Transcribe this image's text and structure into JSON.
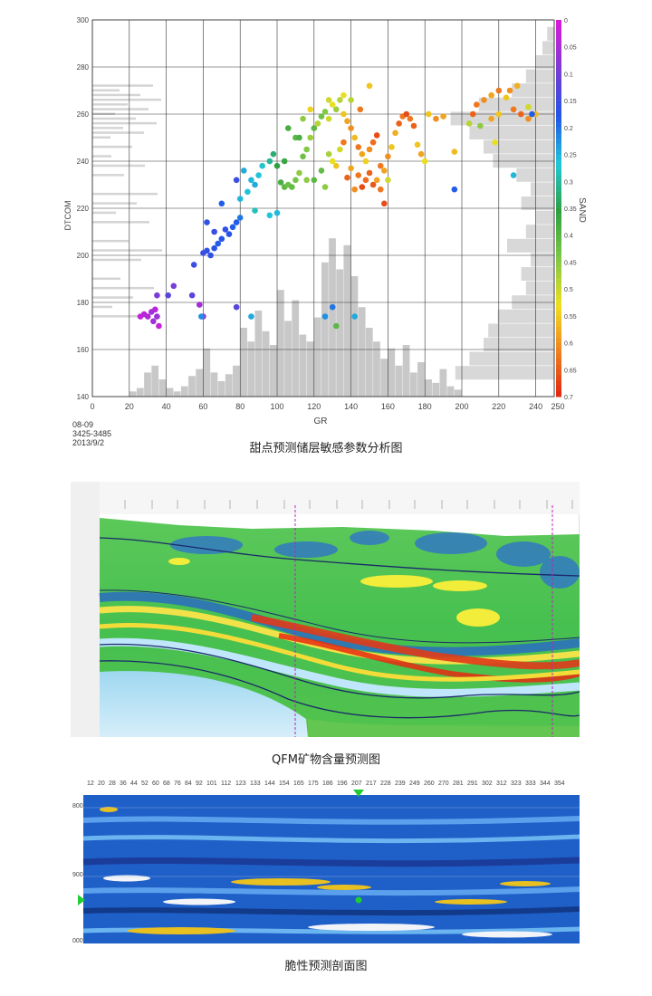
{
  "figure1": {
    "caption": "甜点预测储层敏感参数分析图",
    "meta_lines": [
      "08-09",
      "3425-3485",
      "2013/9/2"
    ],
    "colorbar_label": "SAND"
  },
  "figure2": {
    "caption": "QFM矿物含量预测图"
  },
  "figure3": {
    "caption": "脆性预测剖面图"
  },
  "chart_data": [
    {
      "type": "scatter",
      "title": "",
      "xlabel": "GR",
      "ylabel": "DTCOM",
      "xlim": [
        0,
        250
      ],
      "ylim": [
        140,
        300
      ],
      "x_ticks": [
        0,
        20,
        40,
        60,
        80,
        100,
        120,
        140,
        160,
        180,
        200,
        220,
        240,
        250
      ],
      "y_ticks": [
        140,
        160,
        180,
        200,
        220,
        240,
        260,
        280,
        300
      ],
      "grid": true,
      "colorbar": {
        "label": "SAND",
        "min": 0,
        "max": 0.7,
        "ticks": [
          0,
          0.05,
          0.1,
          0.15,
          0.2,
          0.25,
          0.3,
          0.35,
          0.4,
          0.45,
          0.5,
          0.55,
          0.6,
          0.65,
          0.7
        ],
        "colors": [
          "#d81bd8",
          "#7a3cd4",
          "#2255e8",
          "#21c8d8",
          "#2ea040",
          "#7ec848",
          "#f0e020",
          "#f08020",
          "#e02010"
        ]
      },
      "gr_histogram": [
        {
          "x": 22,
          "c": 3
        },
        {
          "x": 26,
          "c": 5
        },
        {
          "x": 30,
          "c": 14
        },
        {
          "x": 34,
          "c": 18
        },
        {
          "x": 38,
          "c": 10
        },
        {
          "x": 42,
          "c": 5
        },
        {
          "x": 46,
          "c": 3
        },
        {
          "x": 50,
          "c": 6
        },
        {
          "x": 54,
          "c": 12
        },
        {
          "x": 58,
          "c": 16
        },
        {
          "x": 62,
          "c": 28
        },
        {
          "x": 66,
          "c": 14
        },
        {
          "x": 70,
          "c": 9
        },
        {
          "x": 74,
          "c": 13
        },
        {
          "x": 78,
          "c": 18
        },
        {
          "x": 82,
          "c": 40
        },
        {
          "x": 86,
          "c": 32
        },
        {
          "x": 90,
          "c": 50
        },
        {
          "x": 94,
          "c": 38
        },
        {
          "x": 98,
          "c": 30
        },
        {
          "x": 102,
          "c": 62
        },
        {
          "x": 106,
          "c": 44
        },
        {
          "x": 110,
          "c": 56
        },
        {
          "x": 114,
          "c": 36
        },
        {
          "x": 118,
          "c": 32
        },
        {
          "x": 122,
          "c": 46
        },
        {
          "x": 126,
          "c": 78
        },
        {
          "x": 130,
          "c": 92
        },
        {
          "x": 134,
          "c": 74
        },
        {
          "x": 138,
          "c": 88
        },
        {
          "x": 142,
          "c": 70
        },
        {
          "x": 146,
          "c": 52
        },
        {
          "x": 150,
          "c": 40
        },
        {
          "x": 154,
          "c": 32
        },
        {
          "x": 158,
          "c": 22
        },
        {
          "x": 162,
          "c": 28
        },
        {
          "x": 166,
          "c": 18
        },
        {
          "x": 170,
          "c": 30
        },
        {
          "x": 174,
          "c": 14
        },
        {
          "x": 178,
          "c": 20
        },
        {
          "x": 182,
          "c": 10
        },
        {
          "x": 186,
          "c": 8
        },
        {
          "x": 190,
          "c": 16
        },
        {
          "x": 194,
          "c": 6
        },
        {
          "x": 198,
          "c": 4
        }
      ],
      "dt_histogram": [
        {
          "y": 150,
          "c": 42
        },
        {
          "y": 156,
          "c": 36
        },
        {
          "y": 162,
          "c": 30
        },
        {
          "y": 168,
          "c": 28
        },
        {
          "y": 174,
          "c": 24
        },
        {
          "y": 180,
          "c": 18
        },
        {
          "y": 186,
          "c": 12
        },
        {
          "y": 192,
          "c": 14
        },
        {
          "y": 198,
          "c": 10
        },
        {
          "y": 204,
          "c": 20
        },
        {
          "y": 210,
          "c": 12
        },
        {
          "y": 216,
          "c": 8
        },
        {
          "y": 222,
          "c": 14
        },
        {
          "y": 228,
          "c": 10
        },
        {
          "y": 234,
          "c": 16
        },
        {
          "y": 240,
          "c": 26
        },
        {
          "y": 246,
          "c": 30
        },
        {
          "y": 252,
          "c": 36
        },
        {
          "y": 258,
          "c": 44
        },
        {
          "y": 264,
          "c": 32
        },
        {
          "y": 270,
          "c": 18
        },
        {
          "y": 276,
          "c": 12
        },
        {
          "y": 282,
          "c": 8
        },
        {
          "y": 288,
          "c": 5
        },
        {
          "y": 294,
          "c": 3
        }
      ],
      "points": [
        {
          "x": 26,
          "y": 174,
          "s": 0.02
        },
        {
          "x": 28,
          "y": 175,
          "s": 0.03
        },
        {
          "x": 30,
          "y": 174,
          "s": 0.04
        },
        {
          "x": 32,
          "y": 176,
          "s": 0.05
        },
        {
          "x": 34,
          "y": 177,
          "s": 0.03
        },
        {
          "x": 35,
          "y": 174,
          "s": 0.06
        },
        {
          "x": 36,
          "y": 170,
          "s": 0.02
        },
        {
          "x": 33,
          "y": 172,
          "s": 0.05
        },
        {
          "x": 35,
          "y": 183,
          "s": 0.09
        },
        {
          "x": 44,
          "y": 187,
          "s": 0.09
        },
        {
          "x": 41,
          "y": 183,
          "s": 0.12
        },
        {
          "x": 54,
          "y": 183,
          "s": 0.12
        },
        {
          "x": 58,
          "y": 179,
          "s": 0.05
        },
        {
          "x": 60,
          "y": 174,
          "s": 0.06
        },
        {
          "x": 55,
          "y": 196,
          "s": 0.15
        },
        {
          "x": 60,
          "y": 201,
          "s": 0.15
        },
        {
          "x": 62,
          "y": 202,
          "s": 0.16
        },
        {
          "x": 64,
          "y": 200,
          "s": 0.16
        },
        {
          "x": 66,
          "y": 203,
          "s": 0.17
        },
        {
          "x": 68,
          "y": 205,
          "s": 0.18
        },
        {
          "x": 70,
          "y": 207,
          "s": 0.17
        },
        {
          "x": 72,
          "y": 211,
          "s": 0.16
        },
        {
          "x": 74,
          "y": 209,
          "s": 0.17
        },
        {
          "x": 76,
          "y": 212,
          "s": 0.18
        },
        {
          "x": 78,
          "y": 214,
          "s": 0.18
        },
        {
          "x": 80,
          "y": 216,
          "s": 0.2
        },
        {
          "x": 62,
          "y": 214,
          "s": 0.16
        },
        {
          "x": 66,
          "y": 210,
          "s": 0.15
        },
        {
          "x": 59,
          "y": 174,
          "s": 0.22
        },
        {
          "x": 80,
          "y": 224,
          "s": 0.25
        },
        {
          "x": 84,
          "y": 227,
          "s": 0.26
        },
        {
          "x": 88,
          "y": 230,
          "s": 0.24
        },
        {
          "x": 90,
          "y": 234,
          "s": 0.26
        },
        {
          "x": 92,
          "y": 238,
          "s": 0.27
        },
        {
          "x": 86,
          "y": 232,
          "s": 0.25
        },
        {
          "x": 82,
          "y": 236,
          "s": 0.24
        },
        {
          "x": 96,
          "y": 240,
          "s": 0.3
        },
        {
          "x": 98,
          "y": 243,
          "s": 0.32
        },
        {
          "x": 100,
          "y": 238,
          "s": 0.35
        },
        {
          "x": 102,
          "y": 231,
          "s": 0.38
        },
        {
          "x": 104,
          "y": 229,
          "s": 0.4
        },
        {
          "x": 106,
          "y": 230,
          "s": 0.42
        },
        {
          "x": 108,
          "y": 229,
          "s": 0.41
        },
        {
          "x": 110,
          "y": 232,
          "s": 0.43
        },
        {
          "x": 112,
          "y": 235,
          "s": 0.45
        },
        {
          "x": 114,
          "y": 242,
          "s": 0.42
        },
        {
          "x": 116,
          "y": 245,
          "s": 0.44
        },
        {
          "x": 118,
          "y": 250,
          "s": 0.46
        },
        {
          "x": 120,
          "y": 254,
          "s": 0.4
        },
        {
          "x": 122,
          "y": 256,
          "s": 0.48
        },
        {
          "x": 124,
          "y": 259,
          "s": 0.42
        },
        {
          "x": 126,
          "y": 261,
          "s": 0.44
        },
        {
          "x": 128,
          "y": 258,
          "s": 0.5
        },
        {
          "x": 130,
          "y": 264,
          "s": 0.52
        },
        {
          "x": 132,
          "y": 262,
          "s": 0.46
        },
        {
          "x": 134,
          "y": 266,
          "s": 0.48
        },
        {
          "x": 136,
          "y": 260,
          "s": 0.55
        },
        {
          "x": 138,
          "y": 257,
          "s": 0.58
        },
        {
          "x": 140,
          "y": 254,
          "s": 0.6
        },
        {
          "x": 142,
          "y": 250,
          "s": 0.56
        },
        {
          "x": 144,
          "y": 246,
          "s": 0.62
        },
        {
          "x": 146,
          "y": 243,
          "s": 0.58
        },
        {
          "x": 148,
          "y": 240,
          "s": 0.54
        },
        {
          "x": 150,
          "y": 245,
          "s": 0.6
        },
        {
          "x": 152,
          "y": 248,
          "s": 0.63
        },
        {
          "x": 154,
          "y": 251,
          "s": 0.66
        },
        {
          "x": 156,
          "y": 238,
          "s": 0.62
        },
        {
          "x": 158,
          "y": 236,
          "s": 0.58
        },
        {
          "x": 160,
          "y": 242,
          "s": 0.6
        },
        {
          "x": 162,
          "y": 246,
          "s": 0.55
        },
        {
          "x": 164,
          "y": 252,
          "s": 0.57
        },
        {
          "x": 166,
          "y": 256,
          "s": 0.64
        },
        {
          "x": 168,
          "y": 259,
          "s": 0.62
        },
        {
          "x": 170,
          "y": 260,
          "s": 0.66
        },
        {
          "x": 172,
          "y": 258,
          "s": 0.62
        },
        {
          "x": 174,
          "y": 255,
          "s": 0.64
        },
        {
          "x": 176,
          "y": 247,
          "s": 0.55
        },
        {
          "x": 178,
          "y": 243,
          "s": 0.58
        },
        {
          "x": 180,
          "y": 240,
          "s": 0.52
        },
        {
          "x": 182,
          "y": 260,
          "s": 0.55
        },
        {
          "x": 186,
          "y": 258,
          "s": 0.6
        },
        {
          "x": 190,
          "y": 259,
          "s": 0.58
        },
        {
          "x": 196,
          "y": 244,
          "s": 0.56
        },
        {
          "x": 120,
          "y": 232,
          "s": 0.4
        },
        {
          "x": 124,
          "y": 236,
          "s": 0.41
        },
        {
          "x": 126,
          "y": 229,
          "s": 0.45
        },
        {
          "x": 128,
          "y": 243,
          "s": 0.47
        },
        {
          "x": 130,
          "y": 240,
          "s": 0.52
        },
        {
          "x": 132,
          "y": 238,
          "s": 0.55
        },
        {
          "x": 134,
          "y": 245,
          "s": 0.5
        },
        {
          "x": 136,
          "y": 248,
          "s": 0.62
        },
        {
          "x": 138,
          "y": 233,
          "s": 0.64
        },
        {
          "x": 140,
          "y": 237,
          "s": 0.58
        },
        {
          "x": 142,
          "y": 228,
          "s": 0.6
        },
        {
          "x": 144,
          "y": 234,
          "s": 0.62
        },
        {
          "x": 146,
          "y": 229,
          "s": 0.66
        },
        {
          "x": 148,
          "y": 232,
          "s": 0.63
        },
        {
          "x": 150,
          "y": 235,
          "s": 0.64
        },
        {
          "x": 152,
          "y": 230,
          "s": 0.65
        },
        {
          "x": 154,
          "y": 232,
          "s": 0.58
        },
        {
          "x": 156,
          "y": 228,
          "s": 0.62
        },
        {
          "x": 160,
          "y": 232,
          "s": 0.5
        },
        {
          "x": 158,
          "y": 222,
          "s": 0.66
        },
        {
          "x": 145,
          "y": 262,
          "s": 0.62
        },
        {
          "x": 140,
          "y": 266,
          "s": 0.48
        },
        {
          "x": 136,
          "y": 268,
          "s": 0.52
        },
        {
          "x": 128,
          "y": 266,
          "s": 0.5
        },
        {
          "x": 118,
          "y": 262,
          "s": 0.54
        },
        {
          "x": 114,
          "y": 258,
          "s": 0.45
        },
        {
          "x": 110,
          "y": 250,
          "s": 0.4
        },
        {
          "x": 106,
          "y": 254,
          "s": 0.38
        },
        {
          "x": 150,
          "y": 272,
          "s": 0.55
        },
        {
          "x": 206,
          "y": 260,
          "s": 0.64
        },
        {
          "x": 208,
          "y": 264,
          "s": 0.62
        },
        {
          "x": 212,
          "y": 266,
          "s": 0.6
        },
        {
          "x": 216,
          "y": 268,
          "s": 0.58
        },
        {
          "x": 220,
          "y": 270,
          "s": 0.62
        },
        {
          "x": 224,
          "y": 267,
          "s": 0.55
        },
        {
          "x": 226,
          "y": 270,
          "s": 0.6
        },
        {
          "x": 228,
          "y": 262,
          "s": 0.62
        },
        {
          "x": 220,
          "y": 260,
          "s": 0.55
        },
        {
          "x": 216,
          "y": 258,
          "s": 0.58
        },
        {
          "x": 232,
          "y": 260,
          "s": 0.64
        },
        {
          "x": 236,
          "y": 258,
          "s": 0.6
        },
        {
          "x": 240,
          "y": 260,
          "s": 0.56
        },
        {
          "x": 236,
          "y": 263,
          "s": 0.5
        },
        {
          "x": 230,
          "y": 272,
          "s": 0.57
        },
        {
          "x": 204,
          "y": 256,
          "s": 0.48
        },
        {
          "x": 210,
          "y": 255,
          "s": 0.45
        },
        {
          "x": 218,
          "y": 248,
          "s": 0.52
        },
        {
          "x": 238,
          "y": 260,
          "s": 0.18
        },
        {
          "x": 228,
          "y": 234,
          "s": 0.25
        },
        {
          "x": 196,
          "y": 228,
          "s": 0.18
        },
        {
          "x": 130,
          "y": 178,
          "s": 0.2
        },
        {
          "x": 132,
          "y": 170,
          "s": 0.4
        },
        {
          "x": 126,
          "y": 174,
          "s": 0.22
        },
        {
          "x": 142,
          "y": 174,
          "s": 0.24
        },
        {
          "x": 86,
          "y": 174,
          "s": 0.24
        },
        {
          "x": 78,
          "y": 178,
          "s": 0.12
        },
        {
          "x": 78,
          "y": 232,
          "s": 0.15
        },
        {
          "x": 100,
          "y": 218,
          "s": 0.25
        },
        {
          "x": 96,
          "y": 217,
          "s": 0.26
        },
        {
          "x": 88,
          "y": 219,
          "s": 0.28
        },
        {
          "x": 70,
          "y": 222,
          "s": 0.18
        },
        {
          "x": 112,
          "y": 250,
          "s": 0.38
        },
        {
          "x": 116,
          "y": 232,
          "s": 0.45
        },
        {
          "x": 104,
          "y": 240,
          "s": 0.36
        }
      ]
    }
  ]
}
